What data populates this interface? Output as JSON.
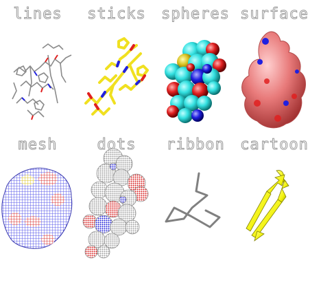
{
  "labels": {
    "lines": "lines",
    "sticks": "sticks",
    "spheres": "spheres",
    "surface": "surface",
    "mesh": "mesh",
    "dots": "dots",
    "ribbon": "ribbon",
    "cartoon": "cartoon"
  },
  "colors": {
    "carbon_lines": "#8a8a8a",
    "carbon_sticks": "#f0e020",
    "carbon_spheres": "#33e0e0",
    "oxygen": "#e02020",
    "nitrogen": "#2020e0",
    "sulfur": "#d8c020",
    "surface": "#e87a7a",
    "mesh": "#5a5ae8",
    "dots": "#d0d0d0",
    "ribbon": "#808080",
    "cartoon": "#f2f20a"
  }
}
